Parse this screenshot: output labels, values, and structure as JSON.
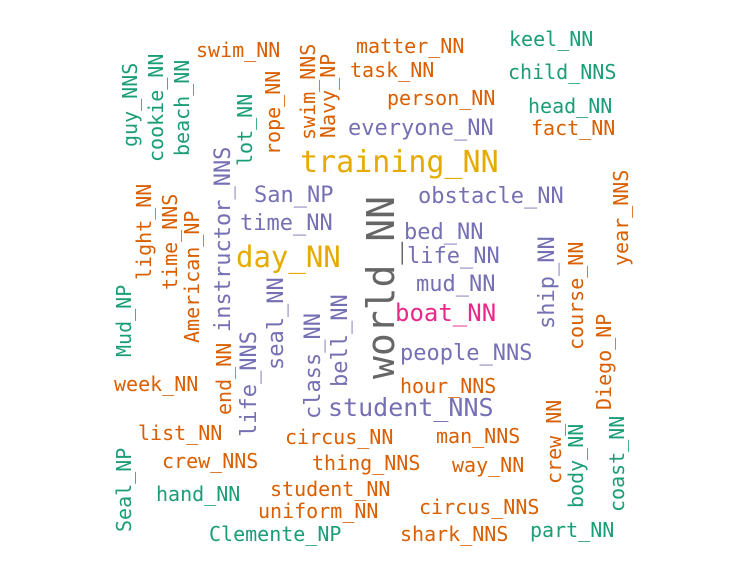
{
  "palette": {
    "green": "#1b9e77",
    "orange": "#d95f02",
    "purple": "#7570b3",
    "magenta": "#e7298a",
    "gold": "#e6ab02",
    "gray": "#666666"
  },
  "words": [
    {
      "text": "world_NN",
      "color": "gray"
    },
    {
      "text": "training_NN",
      "color": "gold"
    },
    {
      "text": "day_NN",
      "color": "gold"
    },
    {
      "text": "boat_NN",
      "color": "magenta"
    },
    {
      "text": "student_NNS",
      "color": "purple"
    },
    {
      "text": "people_NNS",
      "color": "purple"
    },
    {
      "text": "everyone_NN",
      "color": "purple"
    },
    {
      "text": "obstacle_NN",
      "color": "purple"
    },
    {
      "text": "class_NN",
      "color": "purple"
    },
    {
      "text": "time_NN",
      "color": "purple"
    },
    {
      "text": "San_NP",
      "color": "purple"
    },
    {
      "text": "bed_NN",
      "color": "purple"
    },
    {
      "text": "life_NN",
      "color": "purple"
    },
    {
      "text": "mud_NN",
      "color": "purple"
    },
    {
      "text": "instructor_NNS",
      "color": "purple"
    },
    {
      "text": "seal_NN",
      "color": "purple"
    },
    {
      "text": "bell_NN",
      "color": "purple"
    },
    {
      "text": "life_NNS",
      "color": "purple"
    },
    {
      "text": "ship_NN",
      "color": "purple"
    },
    {
      "text": "swim_NN",
      "color": "orange"
    },
    {
      "text": "matter_NN",
      "color": "orange"
    },
    {
      "text": "task_NN",
      "color": "orange"
    },
    {
      "text": "person_NN",
      "color": "orange"
    },
    {
      "text": "fact_NN",
      "color": "orange"
    },
    {
      "text": "swim_NNS",
      "color": "orange"
    },
    {
      "text": "Navy_NP",
      "color": "orange"
    },
    {
      "text": "rope_NN",
      "color": "orange"
    },
    {
      "text": "light_NN",
      "color": "orange"
    },
    {
      "text": "time_NNS",
      "color": "orange"
    },
    {
      "text": "American_NP",
      "color": "orange"
    },
    {
      "text": "year_NNS",
      "color": "orange"
    },
    {
      "text": "course_NN",
      "color": "orange"
    },
    {
      "text": "Diego_NP",
      "color": "orange"
    },
    {
      "text": "week_NN",
      "color": "orange"
    },
    {
      "text": "end_NN",
      "color": "orange"
    },
    {
      "text": "hour_NNS",
      "color": "orange"
    },
    {
      "text": "list_NN",
      "color": "orange"
    },
    {
      "text": "circus_NN",
      "color": "orange"
    },
    {
      "text": "man_NNS",
      "color": "orange"
    },
    {
      "text": "crew_NNS",
      "color": "orange"
    },
    {
      "text": "thing_NNS",
      "color": "orange"
    },
    {
      "text": "way_NN",
      "color": "orange"
    },
    {
      "text": "crew_NN",
      "color": "orange"
    },
    {
      "text": "student_NN",
      "color": "orange"
    },
    {
      "text": "uniform_NN",
      "color": "orange"
    },
    {
      "text": "circus_NNS",
      "color": "orange"
    },
    {
      "text": "shark_NNS",
      "color": "orange"
    },
    {
      "text": "keel_NN",
      "color": "green"
    },
    {
      "text": "child_NNS",
      "color": "green"
    },
    {
      "text": "head_NN",
      "color": "green"
    },
    {
      "text": "guy_NNS",
      "color": "green"
    },
    {
      "text": "cookie_NN",
      "color": "green"
    },
    {
      "text": "beach_NN",
      "color": "green"
    },
    {
      "text": "lot_NN",
      "color": "green"
    },
    {
      "text": "Mud_NP",
      "color": "green"
    },
    {
      "text": "Seal_NP",
      "color": "green"
    },
    {
      "text": "hand_NN",
      "color": "green"
    },
    {
      "text": "Clemente_NP",
      "color": "green"
    },
    {
      "text": "part_NN",
      "color": "green"
    },
    {
      "text": "body_NN",
      "color": "green"
    },
    {
      "text": "coast_NN",
      "color": "green"
    }
  ]
}
